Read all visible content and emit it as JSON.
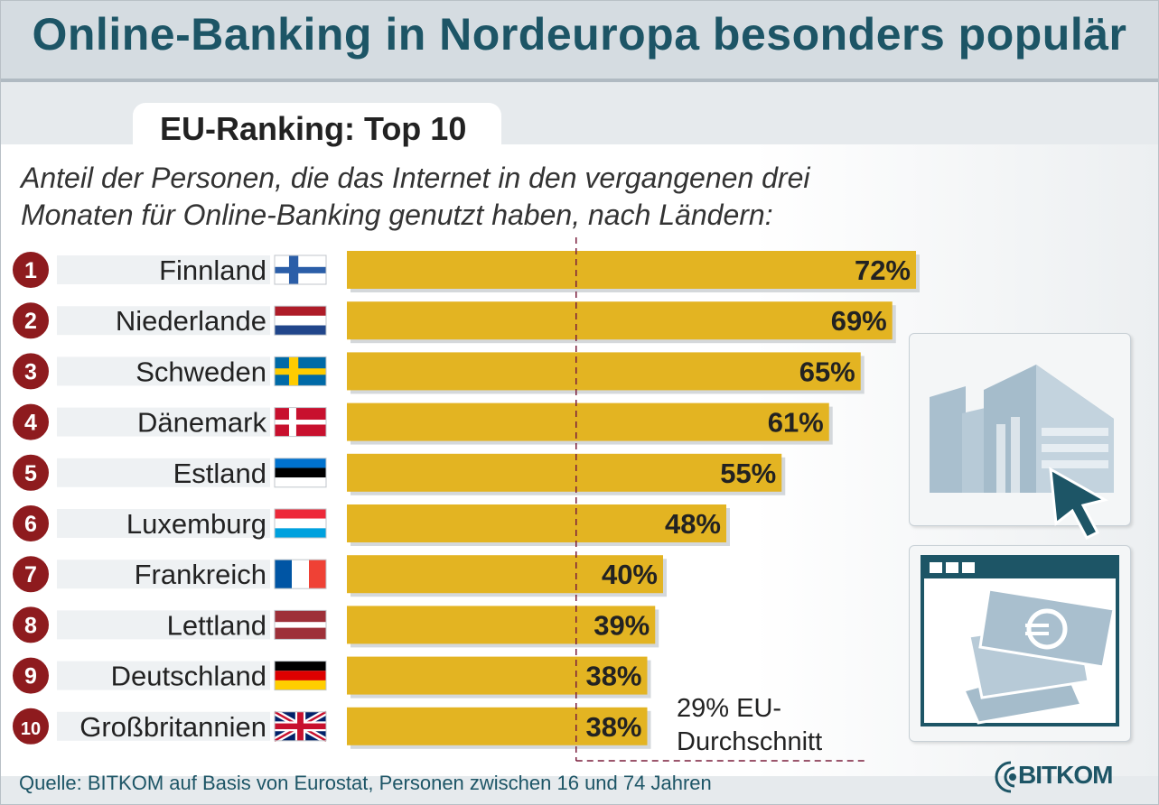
{
  "title": "Online-Banking in Nordeuropa besonders populär",
  "subtitle": "EU-Ranking: Top 10",
  "description": [
    "Anteil der Personen, die das Internet in den vergangenen drei",
    "Monaten für Online-Banking genutzt haben, nach Ländern:"
  ],
  "source": "Quelle: BITKOM auf Basis von Eurostat, Personen zwischen 16 und 74 Jahren",
  "logo_text": "BITKOM",
  "eu_average": {
    "value": 29,
    "label_line1": "29% EU-",
    "label_line2": "Durchschnitt"
  },
  "colors": {
    "bar": "#e3b422",
    "title": "#1d5566",
    "rank_badge": "#8e1b1e",
    "avg_line": "#7a1e3c"
  },
  "chart_data": {
    "type": "bar",
    "orientation": "horizontal",
    "categories": [
      "Finnland",
      "Niederlande",
      "Schweden",
      "Dänemark",
      "Estland",
      "Luxemburg",
      "Frankreich",
      "Lettland",
      "Deutschland",
      "Großbritannien"
    ],
    "ranks": [
      "1",
      "2",
      "3",
      "4",
      "5",
      "6",
      "7",
      "8",
      "9",
      "10"
    ],
    "values": [
      72,
      69,
      65,
      61,
      55,
      48,
      40,
      39,
      38,
      38
    ],
    "value_labels": [
      "72%",
      "69%",
      "65%",
      "61%",
      "55%",
      "48%",
      "40%",
      "39%",
      "38%",
      "38%"
    ],
    "flags": [
      "flag-finland",
      "flag-netherlands",
      "flag-sweden",
      "flag-denmark",
      "flag-estonia",
      "flag-luxembourg",
      "flag-france",
      "flag-latvia",
      "flag-germany",
      "flag-uk"
    ],
    "xlim": [
      0,
      72
    ],
    "reference_line": 29
  },
  "icons": [
    "bank-building-icon",
    "mouse-pointer-icon",
    "euro-banknotes-window-icon",
    "bitkom-logo-icon"
  ]
}
